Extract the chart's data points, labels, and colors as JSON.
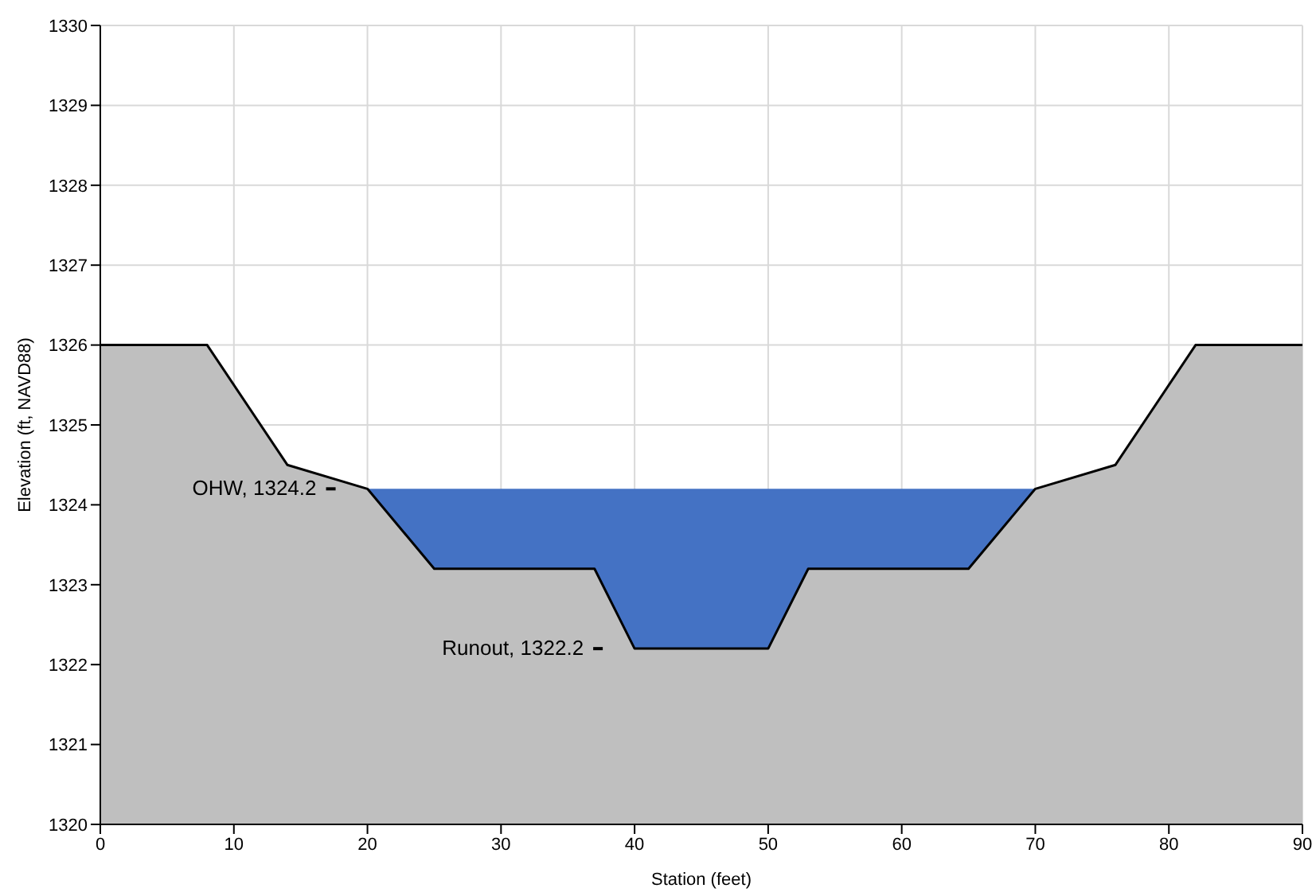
{
  "chart_data": {
    "type": "area",
    "xlabel": "Station (feet)",
    "ylabel": "Elevation (ft, NAVD88)",
    "xlim": [
      0,
      90
    ],
    "xticks": [
      0,
      10,
      20,
      30,
      40,
      50,
      60,
      70,
      80,
      90
    ],
    "ylim": [
      1320,
      1330
    ],
    "yticks": [
      1320,
      1321,
      1322,
      1323,
      1324,
      1325,
      1326,
      1327,
      1328,
      1329,
      1330
    ],
    "grid": true,
    "legend": false,
    "series": [
      {
        "color": "#4472c4",
        "x": [
          20,
          70
        ],
        "values": [
          1324.2,
          1324.2
        ]
      },
      {
        "color": "#bfbfbf",
        "x": [
          0,
          8,
          14,
          20,
          25,
          37,
          40,
          50,
          53,
          65,
          70,
          76,
          82,
          90
        ],
        "values": [
          1326,
          1326,
          1324.5,
          1324.2,
          1323.2,
          1323.2,
          1322.2,
          1322.2,
          1323.2,
          1323.2,
          1324.2,
          1324.5,
          1326,
          1326
        ]
      }
    ],
    "annotations": [
      {
        "text": "OHW, 1324.2",
        "x": 20,
        "y": 1324.2
      },
      {
        "text": "Runout, 1322.2",
        "x": 40,
        "y": 1322.2
      }
    ]
  }
}
